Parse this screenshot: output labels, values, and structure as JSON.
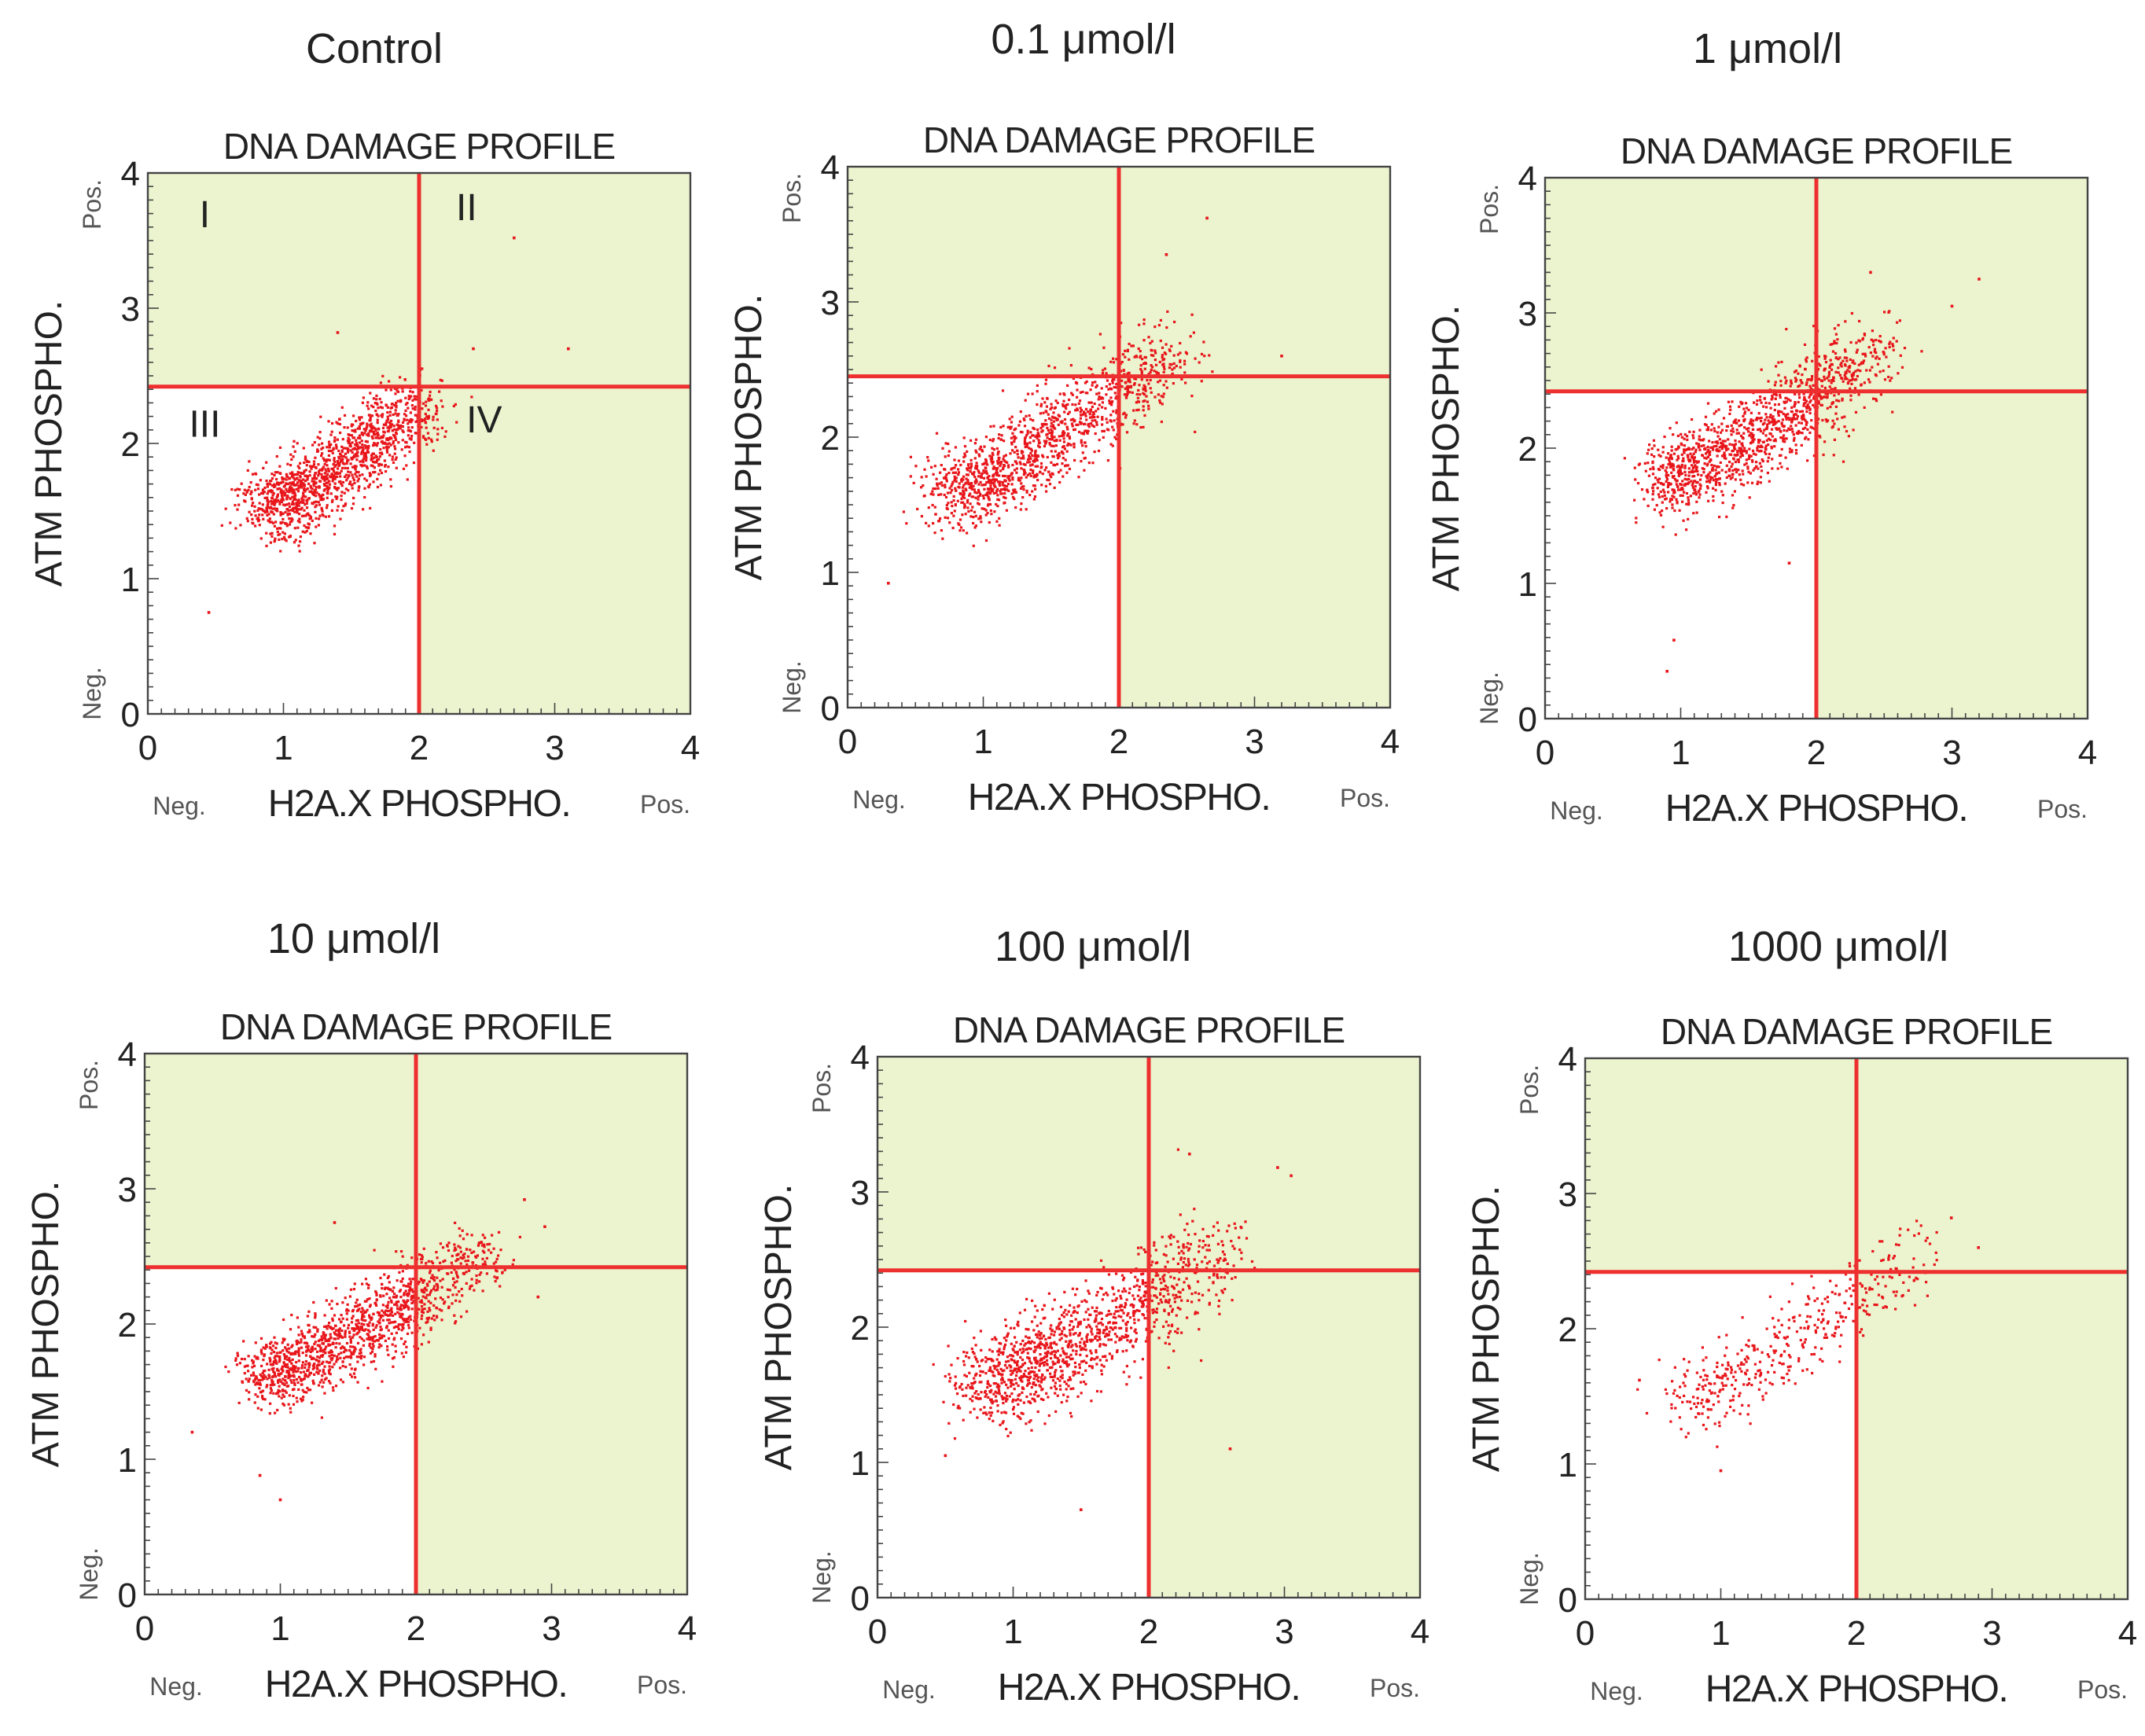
{
  "figure": {
    "panel_titles": [
      "Control",
      "0.1 μmol/l",
      "1 μmol/l",
      "10 μmol/l",
      "100 μmol/l",
      "1000 μmol/l"
    ]
  },
  "colors": {
    "point": "#e8161b",
    "gate_line": "#ee2f2f",
    "quadrant_fill": "#ebf4cf",
    "plot_border": "#444444",
    "text": "#222222"
  },
  "chart_data": [
    {
      "type": "scatter",
      "panel_title": "Control",
      "title": "DNA DAMAGE PROFILE",
      "xlabel": "H2A.X PHOSPHO.",
      "ylabel": "ATM PHOSPHO.",
      "x_neg_label": "Neg.",
      "x_pos_label": "Pos.",
      "y_neg_label": "Neg.",
      "y_pos_label": "Pos.",
      "xlim": [
        0,
        4
      ],
      "ylim": [
        0,
        4
      ],
      "xticks": [
        "0",
        "1",
        "2",
        "3",
        "4"
      ],
      "yticks": [
        "0",
        "1",
        "2",
        "3",
        "4"
      ],
      "gate": {
        "x": 2.0,
        "y": 2.42
      },
      "quadrant_labels": [
        "I",
        "II",
        "III",
        "IV"
      ],
      "cluster": {
        "x": [
          0.9,
          1.3,
          1.7,
          2.0
        ],
        "y": [
          1.5,
          1.75,
          2.05,
          2.3
        ],
        "n": 1300,
        "spread": 0.18
      },
      "outliers": [
        [
          2.7,
          3.52
        ],
        [
          3.1,
          2.7
        ],
        [
          1.4,
          2.82
        ],
        [
          2.4,
          2.7
        ],
        [
          0.45,
          0.75
        ]
      ]
    },
    {
      "type": "scatter",
      "panel_title": "0.1 μmol/l",
      "title": "DNA DAMAGE PROFILE",
      "xlabel": "H2A.X PHOSPHO.",
      "ylabel": "ATM PHOSPHO.",
      "x_neg_label": "Neg.",
      "x_pos_label": "Pos.",
      "y_neg_label": "Neg.",
      "y_pos_label": "Pos.",
      "xlim": [
        0,
        4
      ],
      "ylim": [
        0,
        4
      ],
      "xticks": [
        "0",
        "1",
        "2",
        "3",
        "4"
      ],
      "yticks": [
        "0",
        "1",
        "2",
        "3",
        "4"
      ],
      "gate": {
        "x": 2.0,
        "y": 2.45
      },
      "cluster": {
        "x": [
          0.8,
          1.2,
          1.6,
          2.0,
          2.4
        ],
        "y": [
          1.55,
          1.8,
          2.05,
          2.35,
          2.6
        ],
        "n": 1250,
        "spread": 0.2
      },
      "outliers": [
        [
          2.65,
          3.62
        ],
        [
          2.35,
          3.35
        ],
        [
          3.2,
          2.6
        ],
        [
          0.3,
          0.92
        ]
      ]
    },
    {
      "type": "scatter",
      "panel_title": "1 μmol/l",
      "title": "DNA DAMAGE PROFILE",
      "xlabel": "H2A.X PHOSPHO.",
      "ylabel": "ATM PHOSPHO.",
      "x_neg_label": "Neg.",
      "x_pos_label": "Pos.",
      "y_neg_label": "Neg.",
      "y_pos_label": "Pos.",
      "xlim": [
        0,
        4
      ],
      "ylim": [
        0,
        4
      ],
      "xticks": [
        "0",
        "1",
        "2",
        "3",
        "4"
      ],
      "yticks": [
        "0",
        "1",
        "2",
        "3",
        "4"
      ],
      "gate": {
        "x": 2.0,
        "y": 2.42
      },
      "cluster": {
        "x": [
          0.9,
          1.3,
          1.7,
          2.0,
          2.5
        ],
        "y": [
          1.75,
          1.95,
          2.15,
          2.4,
          2.75
        ],
        "n": 1250,
        "spread": 0.19
      },
      "outliers": [
        [
          3.2,
          3.25
        ],
        [
          3.0,
          3.05
        ],
        [
          2.4,
          3.3
        ],
        [
          0.9,
          0.35
        ],
        [
          0.95,
          0.58
        ],
        [
          1.8,
          1.15
        ]
      ]
    },
    {
      "type": "scatter",
      "panel_title": "10 μmol/l",
      "title": "DNA DAMAGE PROFILE",
      "xlabel": "H2A.X PHOSPHO.",
      "ylabel": "ATM PHOSPHO.",
      "x_neg_label": "Neg.",
      "x_pos_label": "Pos.",
      "y_neg_label": "Neg.",
      "y_pos_label": "Pos.",
      "xlim": [
        0,
        4
      ],
      "ylim": [
        0,
        4
      ],
      "xticks": [
        "0",
        "1",
        "2",
        "3",
        "4"
      ],
      "yticks": [
        "0",
        "1",
        "2",
        "3",
        "4"
      ],
      "gate": {
        "x": 2.0,
        "y": 2.42
      },
      "cluster": {
        "x": [
          0.9,
          1.3,
          1.7,
          2.0,
          2.5
        ],
        "y": [
          1.6,
          1.8,
          2.0,
          2.2,
          2.55
        ],
        "n": 1300,
        "spread": 0.17
      },
      "outliers": [
        [
          1.4,
          2.75
        ],
        [
          2.8,
          2.92
        ],
        [
          2.95,
          2.72
        ],
        [
          2.9,
          2.2
        ],
        [
          0.35,
          1.2
        ],
        [
          1.0,
          0.7
        ],
        [
          0.85,
          0.88
        ]
      ]
    },
    {
      "type": "scatter",
      "panel_title": "100 μmol/l",
      "title": "DNA DAMAGE PROFILE",
      "xlabel": "H2A.X PHOSPHO.",
      "ylabel": "ATM PHOSPHO.",
      "x_neg_label": "Neg.",
      "x_pos_label": "Pos.",
      "y_neg_label": "Neg.",
      "y_pos_label": "Pos.",
      "xlim": [
        0,
        4
      ],
      "ylim": [
        0,
        4
      ],
      "xticks": [
        "0",
        "1",
        "2",
        "3",
        "4"
      ],
      "yticks": [
        "0",
        "1",
        "2",
        "3",
        "4"
      ],
      "gate": {
        "x": 2.0,
        "y": 2.42
      },
      "cluster": {
        "x": [
          0.8,
          1.2,
          1.6,
          2.0,
          2.5
        ],
        "y": [
          1.55,
          1.75,
          1.95,
          2.2,
          2.6
        ],
        "n": 1250,
        "spread": 0.22
      },
      "outliers": [
        [
          3.05,
          3.12
        ],
        [
          2.95,
          3.18
        ],
        [
          2.3,
          3.28
        ],
        [
          0.5,
          1.05
        ],
        [
          1.5,
          0.65
        ],
        [
          2.6,
          1.1
        ]
      ]
    },
    {
      "type": "scatter",
      "panel_title": "1000 μmol/l",
      "title": "DNA DAMAGE PROFILE",
      "xlabel": "H2A.X PHOSPHO.",
      "ylabel": "ATM PHOSPHO.",
      "x_neg_label": "Neg.",
      "x_pos_label": "Pos.",
      "y_neg_label": "Neg.",
      "y_pos_label": "Pos.",
      "xlim": [
        0,
        4
      ],
      "ylim": [
        0,
        4
      ],
      "xticks": [
        "0",
        "1",
        "2",
        "3",
        "4"
      ],
      "yticks": [
        "0",
        "1",
        "2",
        "3",
        "4"
      ],
      "gate": {
        "x": 2.0,
        "y": 2.42
      },
      "cluster": {
        "x": [
          0.8,
          1.2,
          1.6,
          2.0,
          2.5
        ],
        "y": [
          1.45,
          1.7,
          1.95,
          2.25,
          2.6
        ],
        "n": 420,
        "spread": 0.18
      },
      "outliers": [
        [
          2.9,
          2.6
        ],
        [
          2.7,
          2.82
        ],
        [
          0.4,
          1.62
        ],
        [
          1.0,
          0.95
        ]
      ]
    }
  ]
}
